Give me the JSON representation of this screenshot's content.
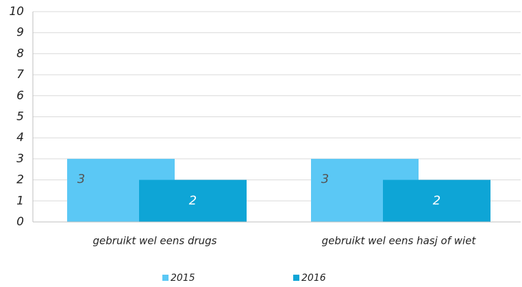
{
  "chart_data": {
    "type": "bar",
    "categories": [
      "gebruikt wel eens drugs",
      "gebruikt wel eens hasj of wiet"
    ],
    "series": [
      {
        "name": "2015",
        "color": "#5bc8f5",
        "label_color": "#555555",
        "values": [
          3,
          3
        ]
      },
      {
        "name": "2016",
        "color": "#0ea5d6",
        "label_color": "#ffffff",
        "values": [
          2,
          2
        ]
      }
    ],
    "ylim": [
      0,
      10
    ],
    "yticks": [
      0,
      1,
      2,
      3,
      4,
      5,
      6,
      7,
      8,
      9,
      10
    ],
    "grid": true,
    "legend": "bottom"
  }
}
